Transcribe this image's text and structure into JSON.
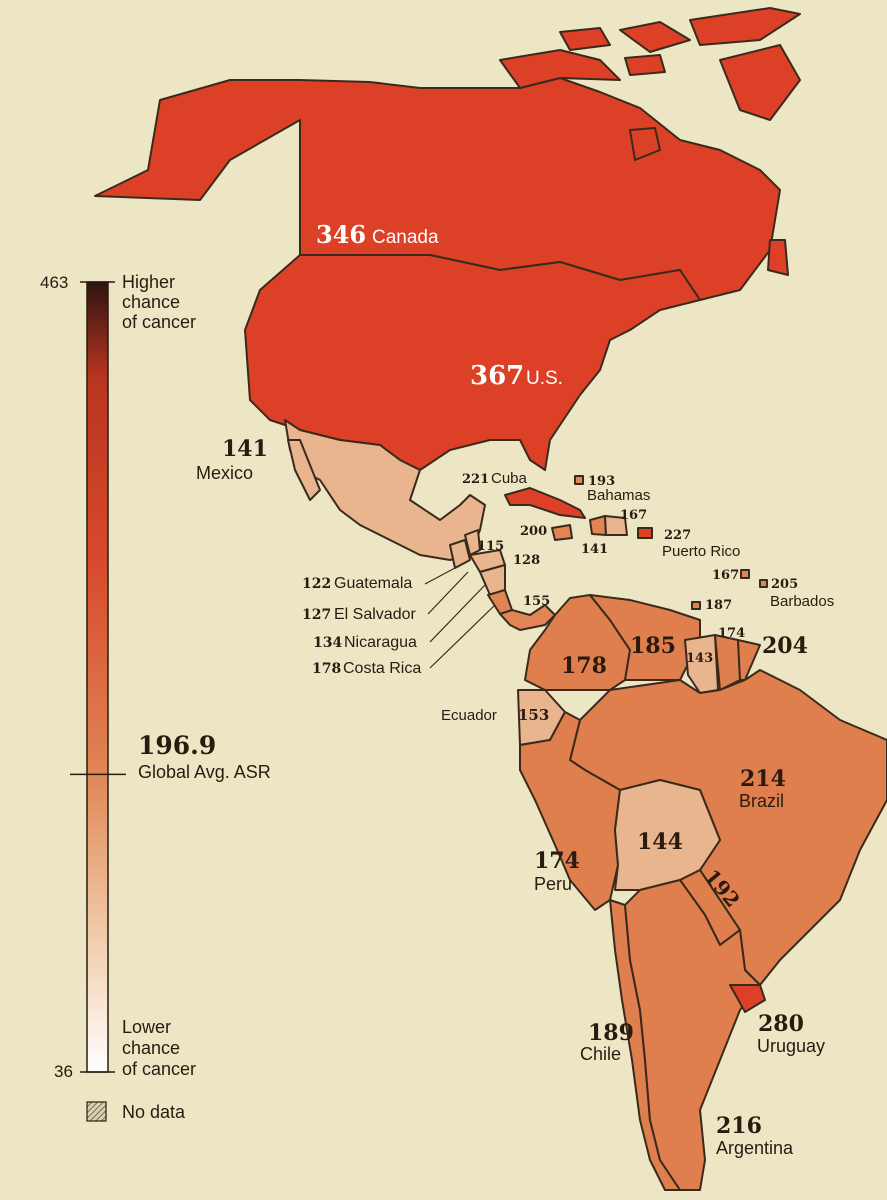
{
  "legend": {
    "max_value": "463",
    "min_value": "36",
    "max_caption": [
      "Higher",
      "chance",
      "of cancer"
    ],
    "min_caption": [
      "Lower",
      "chance",
      "of cancer"
    ],
    "global_avg_value": "196.9",
    "global_avg_label": "Global Avg. ASR",
    "global_avg_number": 196.9,
    "scale_min": 36,
    "scale_max": 463,
    "no_data_label": "No data",
    "colors": {
      "top": "#2e1410",
      "high": "#c63a22",
      "mid": "#e08553",
      "low": "#f0c09a",
      "bottom": "#ffffff"
    }
  },
  "colors": {
    "background": "#ece6c5",
    "north_america": "#dc4128",
    "south_america_mid": "#e07f4e",
    "low": "#e8b58e",
    "border": "#3a2a1c"
  },
  "countries": {
    "canada": {
      "value": "346",
      "name": "Canada"
    },
    "us": {
      "value": "367",
      "name": "U.S."
    },
    "mexico": {
      "value": "141",
      "name": "Mexico"
    },
    "cuba": {
      "value": "221",
      "name": "Cuba"
    },
    "bahamas": {
      "value": "193",
      "name": "Bahamas"
    },
    "haiti": {
      "value": "167"
    },
    "dominican_rep": {
      "value": "141"
    },
    "jamaica": {
      "value": "200"
    },
    "puerto_rico": {
      "value": "227",
      "name": "Puerto Rico"
    },
    "belize": {
      "value": "115"
    },
    "honduras": {
      "value": "128"
    },
    "guatemala": {
      "value": "122",
      "name": "Guatemala"
    },
    "el_salvador": {
      "value": "127",
      "name": "El Salvador"
    },
    "nicaragua": {
      "value": "134",
      "name": "Nicaragua"
    },
    "costa_rica": {
      "value": "178",
      "name": "Costa Rica"
    },
    "panama": {
      "value": "155"
    },
    "st_lucia": {
      "value": "167"
    },
    "barbados": {
      "value": "205",
      "name": "Barbados"
    },
    "trinidad": {
      "value": "187"
    },
    "colombia": {
      "value": "178"
    },
    "venezuela": {
      "value": "185"
    },
    "guyana": {
      "value": "143"
    },
    "suriname": {
      "value": "174"
    },
    "french_guiana": {
      "value": "204"
    },
    "ecuador": {
      "value": "153",
      "name": "Ecuador"
    },
    "peru": {
      "value": "174",
      "name": "Peru"
    },
    "brazil": {
      "value": "214",
      "name": "Brazil"
    },
    "bolivia": {
      "value": "144"
    },
    "paraguay": {
      "value": "192"
    },
    "chile": {
      "value": "189",
      "name": "Chile"
    },
    "argentina": {
      "value": "216",
      "name": "Argentina"
    },
    "uruguay": {
      "value": "280",
      "name": "Uruguay"
    }
  }
}
